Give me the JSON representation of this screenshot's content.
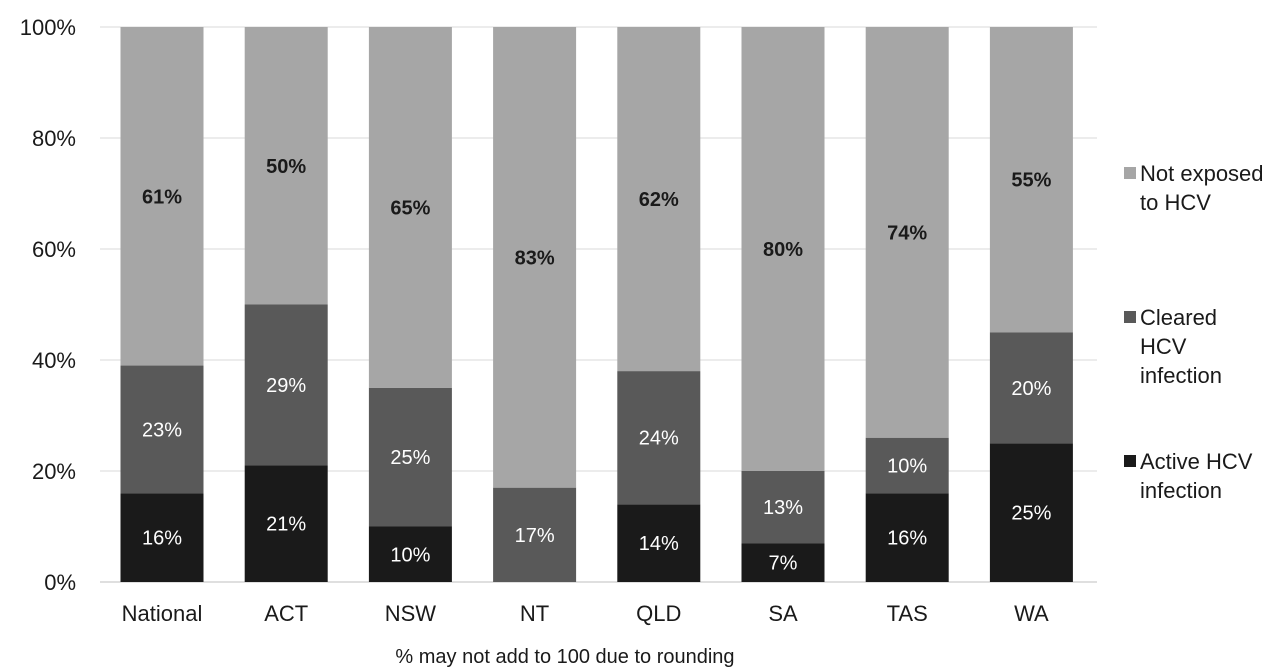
{
  "chart_data": {
    "type": "bar",
    "stacked": true,
    "percent": true,
    "categories": [
      "National",
      "ACT",
      "NSW",
      "NT",
      "QLD",
      "SA",
      "TAS",
      "WA"
    ],
    "series": [
      {
        "name": "Active HCV infection",
        "values": [
          16,
          21,
          10,
          0,
          14,
          7,
          16,
          25
        ],
        "color": "#1a1a1a",
        "labels": [
          "16%",
          "21%",
          "10%",
          "",
          "14%",
          "7%",
          "16%",
          "25%"
        ]
      },
      {
        "name": "Cleared HCV infection",
        "values": [
          23,
          29,
          25,
          17,
          24,
          13,
          10,
          20
        ],
        "color": "#595959",
        "labels": [
          "23%",
          "29%",
          "25%",
          "17%",
          "24%",
          "13%",
          "10%",
          "20%"
        ]
      },
      {
        "name": "Not exposed to HCV",
        "values": [
          61,
          50,
          65,
          83,
          62,
          80,
          74,
          55
        ],
        "color": "#a6a6a6",
        "labels": [
          "61%",
          "50%",
          "65%",
          "83%",
          "62%",
          "80%",
          "74%",
          "55%"
        ]
      }
    ],
    "y_ticks": [
      "0%",
      "20%",
      "40%",
      "60%",
      "80%",
      "100%"
    ],
    "ylim": [
      0,
      100
    ],
    "grid": true,
    "legend_position": "right",
    "legend_order": [
      "Not exposed to HCV",
      "Cleared HCV infection",
      "Active HCV infection"
    ],
    "footnote": "% may not add to 100 due to rounding"
  }
}
